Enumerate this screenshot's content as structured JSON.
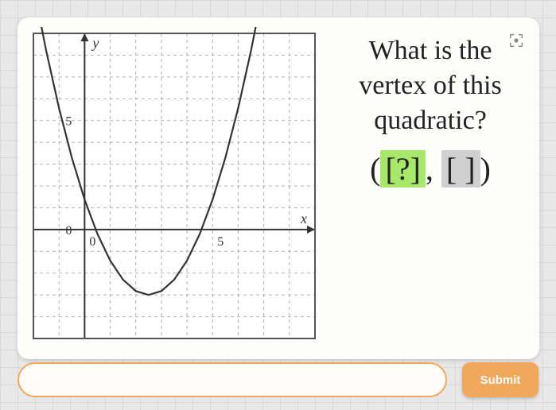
{
  "prompt": {
    "line1": "What is the",
    "line2": "vertex of this",
    "line3": "quadratic?",
    "answer_open": "(",
    "answer_close": ")",
    "slot1": "[?]",
    "slot2": "[ ]",
    "comma": ", "
  },
  "chart": {
    "type": "line",
    "x_axis_label": "x",
    "y_axis_label": "y",
    "xlim": [
      -2,
      9
    ],
    "ylim": [
      -5,
      9
    ],
    "grid_major_step": 1,
    "grid_color": "#b0b0b0",
    "grid_dash": "4 4",
    "axis_color": "#333333",
    "border_color": "#555555",
    "background": "#ffffff",
    "tick_labels_y": [
      {
        "val": 0,
        "text": "0"
      },
      {
        "val": 5,
        "text": "5"
      }
    ],
    "tick_labels_x": [
      {
        "val": 0,
        "text": "0"
      },
      {
        "val": 5,
        "text": "5"
      }
    ],
    "label_fontsize": 18,
    "curve": {
      "color": "#333333",
      "width": 2.2,
      "a": 0.7,
      "h": 2.5,
      "k": -3,
      "x_samples": [
        -2,
        -1.5,
        -1,
        -0.5,
        0,
        0.5,
        1,
        1.5,
        2,
        2.5,
        3,
        3.5,
        4,
        4.5,
        5,
        5.5,
        6,
        6.5,
        7
      ]
    }
  },
  "controls": {
    "submit_label": "Submit"
  },
  "colors": {
    "active_slot": "#a7e86b",
    "inactive_slot": "#d0d0d0",
    "accent": "#f2a85a"
  }
}
